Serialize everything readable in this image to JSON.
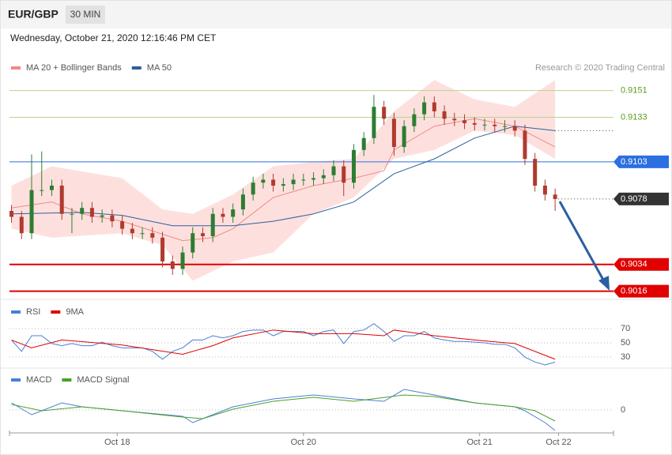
{
  "header": {
    "symbol": "EUR/GBP",
    "interval": "30 MIN",
    "timestamp": "Wednesday, October 21, 2020 12:16:46 PM CET"
  },
  "credit": "Research © 2020 Trading Central",
  "chart_data": [
    {
      "type": "candlestick",
      "xlim": [
        -0.2,
        59.8
      ],
      "ylim": [
        0.9011,
        0.918
      ],
      "up_color": "#2e7d32",
      "down_color": "#b03a2e",
      "x": [
        0,
        1,
        2,
        3,
        4,
        5,
        6,
        7,
        8,
        9,
        10,
        11,
        12,
        13,
        14,
        15,
        16,
        17,
        18,
        19,
        20,
        21,
        22,
        23,
        24,
        25,
        26,
        27,
        28,
        29,
        30,
        31,
        32,
        33,
        34,
        35,
        36,
        37,
        38,
        39,
        40,
        41,
        42,
        43,
        44,
        45,
        46,
        47,
        48,
        49,
        50,
        51,
        52,
        53,
        54
      ],
      "open": [
        0.907,
        0.9066,
        0.9055,
        0.9084,
        0.9084,
        0.9087,
        0.9068,
        0.9068,
        0.9072,
        0.9066,
        0.9067,
        0.9063,
        0.9058,
        0.9055,
        0.9055,
        0.9052,
        0.9036,
        0.9031,
        0.9042,
        0.9055,
        0.9053,
        0.9068,
        0.9066,
        0.9071,
        0.9081,
        0.9089,
        0.9091,
        0.9087,
        0.9088,
        0.9091,
        0.9091,
        0.9092,
        0.9094,
        0.91,
        0.9089,
        0.9111,
        0.9119,
        0.914,
        0.9132,
        0.9113,
        0.9127,
        0.9135,
        0.9143,
        0.9137,
        0.9132,
        0.9131,
        0.9129,
        0.9128,
        0.9128,
        0.9127,
        0.9127,
        0.9124,
        0.9105,
        0.9087,
        0.9081
      ],
      "high": [
        0.9074,
        0.907,
        0.9108,
        0.911,
        0.9091,
        0.9091,
        0.9072,
        0.9076,
        0.9076,
        0.9071,
        0.9071,
        0.9067,
        0.9062,
        0.9059,
        0.9059,
        0.9056,
        0.904,
        0.9046,
        0.9059,
        0.9059,
        0.9072,
        0.9072,
        0.9075,
        0.9085,
        0.9093,
        0.9095,
        0.9095,
        0.9092,
        0.9095,
        0.9095,
        0.9096,
        0.9098,
        0.9104,
        0.9104,
        0.9115,
        0.9123,
        0.9148,
        0.9144,
        0.9136,
        0.9131,
        0.9139,
        0.9147,
        0.9147,
        0.9141,
        0.9136,
        0.9135,
        0.9133,
        0.9132,
        0.9132,
        0.9131,
        0.9131,
        0.9128,
        0.9109,
        0.9091,
        0.9085
      ],
      "low": [
        0.9062,
        0.9051,
        0.9051,
        0.908,
        0.908,
        0.9064,
        0.9055,
        0.9064,
        0.9062,
        0.9062,
        0.9059,
        0.9054,
        0.9051,
        0.9051,
        0.9048,
        0.9032,
        0.9027,
        0.9027,
        0.9038,
        0.9049,
        0.9049,
        0.9062,
        0.9062,
        0.9067,
        0.9077,
        0.9085,
        0.9083,
        0.9083,
        0.9084,
        0.9087,
        0.9087,
        0.9088,
        0.909,
        0.908,
        0.9085,
        0.9107,
        0.9115,
        0.9128,
        0.9107,
        0.9109,
        0.9123,
        0.9131,
        0.9133,
        0.9128,
        0.9127,
        0.9125,
        0.9124,
        0.9124,
        0.9123,
        0.9123,
        0.912,
        0.9101,
        0.9083,
        0.9077,
        0.907
      ],
      "close": [
        0.9066,
        0.9055,
        0.9084,
        0.9084,
        0.9087,
        0.9068,
        0.9068,
        0.9072,
        0.9066,
        0.9067,
        0.9063,
        0.9058,
        0.9055,
        0.9055,
        0.9052,
        0.9036,
        0.9031,
        0.9042,
        0.9055,
        0.9053,
        0.9068,
        0.9066,
        0.9071,
        0.9081,
        0.9089,
        0.9091,
        0.9087,
        0.9088,
        0.9091,
        0.9091,
        0.9092,
        0.9094,
        0.91,
        0.9089,
        0.9111,
        0.9119,
        0.914,
        0.9132,
        0.9113,
        0.9127,
        0.9135,
        0.9143,
        0.9137,
        0.9132,
        0.9131,
        0.9129,
        0.9128,
        0.9128,
        0.9127,
        0.9127,
        0.9124,
        0.9105,
        0.9087,
        0.9081,
        0.9078
      ],
      "bands": {
        "color": "#fde0de",
        "x": [
          0,
          4,
          11,
          15,
          18,
          22,
          26,
          30,
          34,
          38,
          42,
          46,
          50,
          54
        ],
        "upper": [
          0.9087,
          0.91,
          0.9092,
          0.9071,
          0.9068,
          0.9081,
          0.91,
          0.9103,
          0.9105,
          0.9137,
          0.9158,
          0.9145,
          0.914,
          0.9158
        ],
        "lower": [
          0.9058,
          0.9052,
          0.9055,
          0.9047,
          0.9023,
          0.9036,
          0.9042,
          0.9068,
          0.9079,
          0.9105,
          0.9111,
          0.9124,
          0.9121,
          0.9105
        ]
      },
      "series": [
        {
          "name": "MA 20 + Bollinger Bands",
          "color": "#f08a84",
          "x": [
            0,
            4,
            7,
            11,
            17,
            20,
            22,
            26,
            30,
            34,
            37,
            38,
            42,
            46,
            50,
            54
          ],
          "values": [
            0.9072,
            0.9076,
            0.9068,
            0.9063,
            0.905,
            0.9052,
            0.9058,
            0.9079,
            0.9087,
            0.9092,
            0.9097,
            0.9111,
            0.9127,
            0.9132,
            0.9127,
            0.9113
          ]
        },
        {
          "name": "MA 50",
          "color": "#2f5f9a",
          "extend": true,
          "x": [
            0,
            7,
            11,
            16,
            22,
            26,
            30,
            34,
            38,
            42,
            46,
            50,
            54
          ],
          "values": [
            0.9068,
            0.9069,
            0.9067,
            0.906,
            0.906,
            0.9063,
            0.9068,
            0.9076,
            0.9095,
            0.9105,
            0.9119,
            0.9127,
            0.9124
          ]
        }
      ],
      "levels": [
        {
          "value": 0.9151,
          "color": "#5a9e1a",
          "line": "thin",
          "tag": false
        },
        {
          "value": 0.9133,
          "color": "#5a9e1a",
          "line": "thin",
          "tag": false
        },
        {
          "value": 0.9103,
          "color": "#2b6fe0",
          "line": "thin",
          "tag": true
        },
        {
          "value": 0.9078,
          "color": "#333333",
          "line": "dotted",
          "tag": true
        },
        {
          "value": 0.9034,
          "color": "#e00000",
          "line": "thick",
          "tag": true
        },
        {
          "value": 0.9016,
          "color": "#e00000",
          "line": "thick",
          "tag": true
        }
      ]
    },
    {
      "type": "line",
      "xlim": [
        -0.2,
        59.8
      ],
      "ylim": [
        15.6,
        110
      ],
      "yticks": [
        30,
        50,
        70
      ],
      "series": [
        {
          "name": "RSI",
          "color": "#4a7fd4",
          "x": [
            0,
            1,
            2,
            3,
            4,
            5,
            6,
            7,
            8,
            9,
            10,
            11,
            12,
            13,
            14,
            15,
            16,
            17,
            18,
            19,
            20,
            21,
            22,
            23,
            24,
            25,
            26,
            27,
            28,
            29,
            30,
            31,
            32,
            33,
            34,
            35,
            36,
            37,
            38,
            39,
            40,
            41,
            42,
            43,
            44,
            45,
            46,
            47,
            48,
            49,
            50,
            51,
            52,
            53,
            54
          ],
          "values": [
            54,
            38,
            60,
            60,
            49,
            46,
            49,
            46,
            46,
            51,
            46,
            43,
            43,
            43,
            38,
            27,
            38,
            43,
            54,
            54,
            60,
            57,
            60,
            66,
            68,
            68,
            60,
            66,
            66,
            66,
            60,
            66,
            68,
            49,
            66,
            68,
            77,
            66,
            52,
            60,
            60,
            66,
            57,
            54,
            52,
            52,
            51,
            50,
            48,
            48,
            43,
            30,
            23,
            19,
            23
          ]
        },
        {
          "name": "9MA",
          "color": "#e00000",
          "x": [
            0,
            2,
            5,
            11,
            17,
            20,
            22,
            26,
            30,
            34,
            37,
            38,
            42,
            46,
            50,
            54
          ],
          "values": [
            54,
            43,
            54,
            47,
            34,
            46,
            57,
            68,
            63,
            63,
            60,
            68,
            60,
            54,
            49,
            27
          ]
        }
      ]
    },
    {
      "type": "line",
      "xlim": [
        -0.2,
        59.8
      ],
      "ylim": [
        -29,
        51
      ],
      "yticks": [
        0
      ],
      "xticks": [
        {
          "value": 10.5,
          "label": "Oct 18"
        },
        {
          "value": 29,
          "label": "Oct 20"
        },
        {
          "value": 46.5,
          "label": "Oct 21"
        },
        {
          "value": 54.35,
          "label": "Oct 22"
        }
      ],
      "series": [
        {
          "name": "MACD",
          "color": "#4a7fd4",
          "x": [
            0,
            2,
            5,
            7,
            11,
            17,
            18,
            22,
            26,
            30,
            34,
            37,
            39,
            42,
            46,
            50,
            51,
            53,
            54
          ],
          "values": [
            9,
            -6,
            9,
            4,
            -1,
            -8,
            -16,
            4,
            14,
            19,
            14,
            11,
            26,
            19,
            9,
            4,
            -1,
            -16,
            -26
          ]
        },
        {
          "name": "MACD Signal",
          "color": "#4aa02c",
          "x": [
            0,
            3,
            7,
            11,
            17,
            19,
            22,
            26,
            30,
            34,
            39,
            42,
            46,
            50,
            52,
            54
          ],
          "values": [
            7,
            -1,
            4,
            -1,
            -9,
            -11,
            1,
            11,
            16,
            11,
            19,
            17,
            9,
            4,
            -1,
            -14
          ]
        }
      ]
    }
  ]
}
